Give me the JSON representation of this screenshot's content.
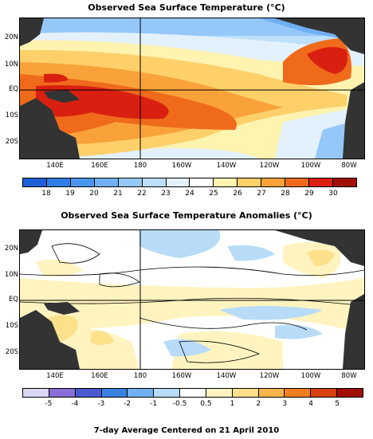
{
  "sst_panel": {
    "title": "Observed Sea Surface Temperature (°C)",
    "lat_labels": [
      "20N",
      "10N",
      "EQ",
      "10S",
      "20S"
    ],
    "lon_labels": [
      "140E",
      "160E",
      "180",
      "160W",
      "140W",
      "120W",
      "100W",
      "80W"
    ],
    "colorbar_labels": [
      "18",
      "19",
      "20",
      "21",
      "22",
      "23",
      "24",
      "25",
      "26",
      "27",
      "28",
      "29",
      "30"
    ],
    "colorbar_colors": [
      "#1e5fd8",
      "#2f7de6",
      "#4a95ee",
      "#6fb0f4",
      "#95c8f8",
      "#bcdffa",
      "#e3f1fc",
      "#ffffff",
      "#fff3b0",
      "#fdd06a",
      "#f9a23a",
      "#f06a1c",
      "#d92010",
      "#a00e06"
    ]
  },
  "anomaly_panel": {
    "title": "Observed Sea Surface Temperature Anomalies (°C)",
    "lat_labels": [
      "20N",
      "10N",
      "EQ",
      "10S",
      "20S"
    ],
    "lon_labels": [
      "140E",
      "160E",
      "180",
      "160W",
      "140W",
      "120W",
      "100W",
      "80W"
    ],
    "colorbar_labels": [
      "-5",
      "-4",
      "-3",
      "-2",
      "-1",
      "-0.5",
      "0.5",
      "1",
      "2",
      "3",
      "4",
      "5"
    ],
    "colorbar_colors": [
      "#d8d8f4",
      "#8a6ed8",
      "#4a5ad0",
      "#3a82e0",
      "#6fb0f0",
      "#b8dcf8",
      "#ffffff",
      "#fff4c0",
      "#fde08a",
      "#f9b54a",
      "#f07e20",
      "#d84010",
      "#a00e06"
    ]
  },
  "footer": "7-day Average Centered on 21 April 2010"
}
